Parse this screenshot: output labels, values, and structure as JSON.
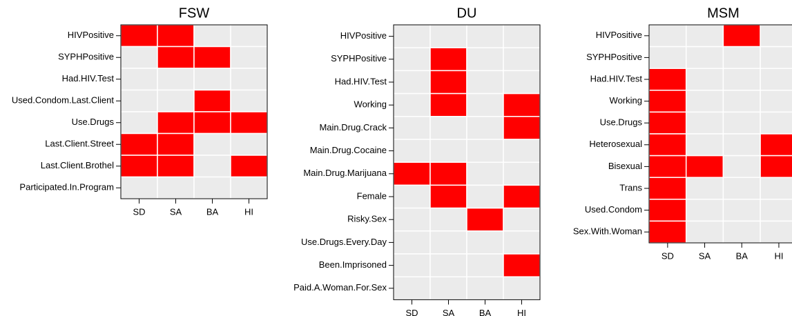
{
  "chart_data": [
    {
      "type": "heatmap",
      "title": "FSW",
      "high_color": "#ff0000",
      "low_color": "#ebebeb",
      "columns": [
        "SD",
        "SA",
        "BA",
        "HI"
      ],
      "rows": [
        "HIVPositive",
        "SYPHPositive",
        "Had.HIV.Test",
        "Used.Condom.Last.Client",
        "Use.Drugs",
        "Last.Client.Street",
        "Last.Client.Brothel",
        "Participated.In.Program"
      ],
      "values": [
        [
          1,
          1,
          0,
          0
        ],
        [
          0,
          1,
          1,
          0
        ],
        [
          0,
          0,
          0,
          0
        ],
        [
          0,
          0,
          1,
          0
        ],
        [
          0,
          1,
          1,
          1
        ],
        [
          1,
          1,
          0,
          0
        ],
        [
          1,
          1,
          0,
          1
        ],
        [
          0,
          0,
          0,
          0
        ]
      ]
    },
    {
      "type": "heatmap",
      "title": "DU",
      "high_color": "#ff0000",
      "low_color": "#ebebeb",
      "columns": [
        "SD",
        "SA",
        "BA",
        "HI"
      ],
      "rows": [
        "HIVPositive",
        "SYPHPositive",
        "Had.HIV.Test",
        "Working",
        "Main.Drug.Crack",
        "Main.Drug.Cocaine",
        "Main.Drug.Marijuana",
        "Female",
        "Risky.Sex",
        "Use.Drugs.Every.Day",
        "Been.Imprisoned",
        "Paid.A.Woman.For.Sex"
      ],
      "values": [
        [
          0,
          0,
          0,
          0
        ],
        [
          0,
          1,
          0,
          0
        ],
        [
          0,
          1,
          0,
          0
        ],
        [
          0,
          1,
          0,
          1
        ],
        [
          0,
          0,
          0,
          1
        ],
        [
          0,
          0,
          0,
          0
        ],
        [
          1,
          1,
          0,
          0
        ],
        [
          0,
          1,
          0,
          1
        ],
        [
          0,
          0,
          1,
          0
        ],
        [
          0,
          0,
          0,
          0
        ],
        [
          0,
          0,
          0,
          1
        ],
        [
          0,
          0,
          0,
          0
        ]
      ]
    },
    {
      "type": "heatmap",
      "title": "MSM",
      "high_color": "#ff0000",
      "low_color": "#ebebeb",
      "columns": [
        "SD",
        "SA",
        "BA",
        "HI"
      ],
      "rows": [
        "HIVPositive",
        "SYPHPositive",
        "Had.HIV.Test",
        "Working",
        "Use.Drugs",
        "Heterosexual",
        "Bisexual",
        "Trans",
        "Used.Condom",
        "Sex.With.Woman"
      ],
      "values": [
        [
          0,
          0,
          1,
          0
        ],
        [
          0,
          0,
          0,
          0
        ],
        [
          1,
          0,
          0,
          0
        ],
        [
          1,
          0,
          0,
          0
        ],
        [
          1,
          0,
          0,
          0
        ],
        [
          1,
          0,
          0,
          1
        ],
        [
          1,
          1,
          0,
          1
        ],
        [
          1,
          0,
          0,
          0
        ],
        [
          1,
          0,
          0,
          0
        ],
        [
          1,
          0,
          0,
          0
        ]
      ]
    }
  ]
}
